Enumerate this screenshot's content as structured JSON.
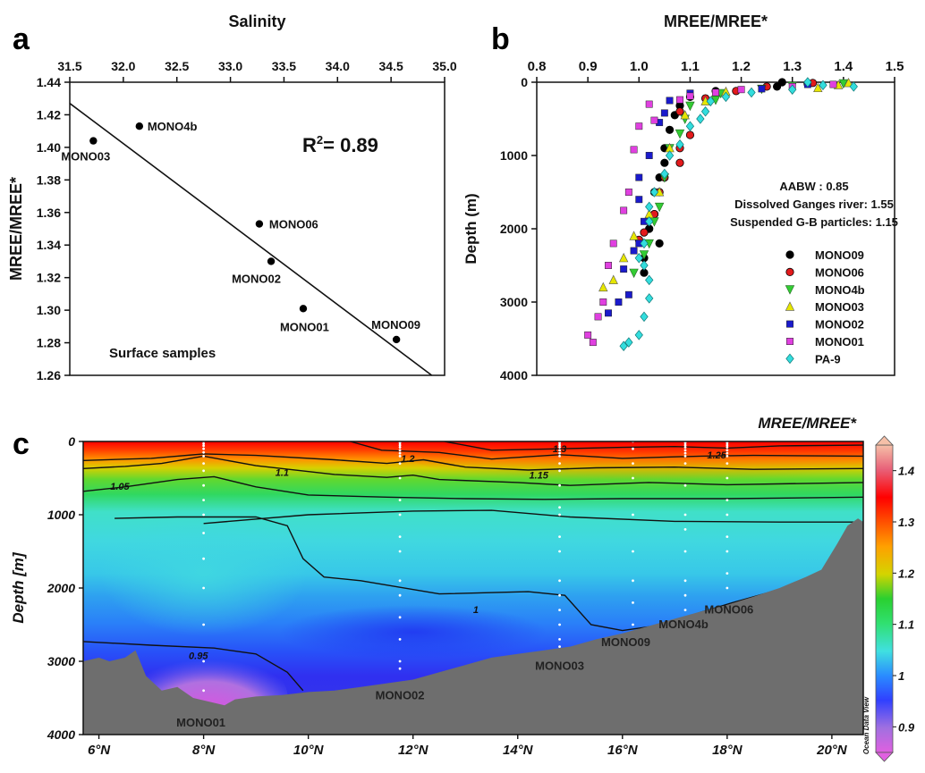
{
  "panels": {
    "a": {
      "letter": "a"
    },
    "b": {
      "letter": "b"
    },
    "c": {
      "letter": "c"
    }
  },
  "chart_data": [
    {
      "id": "a",
      "type": "scatter",
      "title": "Salinity",
      "xlabel": "Salinity",
      "ylabel": "MREE/MREE*",
      "xlim": [
        31.5,
        35.0
      ],
      "ylim": [
        1.26,
        1.44
      ],
      "xticks": [
        "31.5",
        "32.0",
        "32.5",
        "33.0",
        "33.5",
        "34.0",
        "34.5",
        "35.0"
      ],
      "yticks": [
        "1.26",
        "1.28",
        "1.30",
        "1.32",
        "1.34",
        "1.36",
        "1.38",
        "1.40",
        "1.42",
        "1.44"
      ],
      "x_axis_position": "top",
      "grid": false,
      "points": [
        {
          "label": "MONO03",
          "x": 31.72,
          "y": 1.404
        },
        {
          "label": "MONO4b",
          "x": 32.15,
          "y": 1.413
        },
        {
          "label": "MONO06",
          "x": 33.27,
          "y": 1.353
        },
        {
          "label": "MONO02",
          "x": 33.38,
          "y": 1.33
        },
        {
          "label": "MONO01",
          "x": 33.68,
          "y": 1.301
        },
        {
          "label": "MONO09",
          "x": 34.55,
          "y": 1.282
        }
      ],
      "fit_line": {
        "x": [
          31.5,
          34.88
        ],
        "y": [
          1.427,
          1.26
        ]
      },
      "annotations": [
        {
          "text": "R",
          "sup": "2",
          "rest": "= 0.89"
        },
        {
          "text": "Surface samples"
        }
      ]
    },
    {
      "id": "b",
      "type": "scatter",
      "title": "MREE/MREE*",
      "xlabel": "MREE/MREE*",
      "ylabel": "Depth (m)",
      "xlim": [
        0.8,
        1.5
      ],
      "ylim": [
        0,
        4000
      ],
      "y_inverted": true,
      "xticks": [
        "0.8",
        "0.9",
        "1.0",
        "1.1",
        "1.2",
        "1.3",
        "1.4",
        "1.5"
      ],
      "yticks": [
        "0",
        "1000",
        "2000",
        "3000",
        "4000"
      ],
      "x_axis_position": "top",
      "grid": false,
      "annotations": [
        "AABW : 0.85",
        "Dissolved Ganges river: 1.55",
        "Suspended G-B particles: 1.15"
      ],
      "legend_placement": "bottom-right",
      "series": [
        {
          "name": "MONO09",
          "marker": "circle",
          "color": "#000000",
          "points": [
            [
              1.28,
              0
            ],
            [
              1.33,
              20
            ],
            [
              1.27,
              60
            ],
            [
              1.15,
              120
            ],
            [
              1.1,
              200
            ],
            [
              1.08,
              320
            ],
            [
              1.07,
              450
            ],
            [
              1.06,
              650
            ],
            [
              1.05,
              900
            ],
            [
              1.05,
              1100
            ],
            [
              1.04,
              1300
            ],
            [
              1.03,
              1500
            ],
            [
              1.03,
              1800
            ],
            [
              1.02,
              2000
            ],
            [
              1.04,
              2200
            ],
            [
              1.01,
              2400
            ],
            [
              1.01,
              2600
            ]
          ]
        },
        {
          "name": "MONO06",
          "marker": "circle",
          "color": "#e31a1c",
          "points": [
            [
              1.34,
              10
            ],
            [
              1.25,
              60
            ],
            [
              1.19,
              120
            ],
            [
              1.13,
              220
            ],
            [
              1.08,
              400
            ],
            [
              1.1,
              720
            ],
            [
              1.08,
              900
            ],
            [
              1.08,
              1100
            ],
            [
              1.05,
              1300
            ],
            [
              1.04,
              1500
            ],
            [
              1.03,
              1800
            ],
            [
              1.01,
              2050
            ],
            [
              1.0,
              2150
            ]
          ]
        },
        {
          "name": "MONO4b",
          "marker": "triangle-down",
          "color": "#33cc33",
          "points": [
            [
              1.4,
              15
            ],
            [
              1.3,
              50
            ],
            [
              1.24,
              90
            ],
            [
              1.16,
              150
            ],
            [
              1.15,
              240
            ],
            [
              1.1,
              320
            ],
            [
              1.09,
              500
            ],
            [
              1.08,
              700
            ],
            [
              1.06,
              900
            ],
            [
              1.05,
              1300
            ],
            [
              1.04,
              1700
            ],
            [
              1.03,
              1900
            ],
            [
              1.02,
              2200
            ],
            [
              1.01,
              2350
            ],
            [
              0.99,
              2600
            ]
          ]
        },
        {
          "name": "MONO03",
          "marker": "triangle-up",
          "color": "#e6e600",
          "points": [
            [
              1.41,
              10
            ],
            [
              1.39,
              40
            ],
            [
              1.35,
              80
            ],
            [
              1.17,
              130
            ],
            [
              1.13,
              260
            ],
            [
              1.09,
              450
            ],
            [
              1.06,
              900
            ],
            [
              1.04,
              1500
            ],
            [
              1.02,
              1800
            ],
            [
              0.99,
              2100
            ],
            [
              0.97,
              2400
            ],
            [
              0.95,
              2700
            ],
            [
              0.93,
              2800
            ]
          ]
        },
        {
          "name": "MONO02",
          "marker": "square",
          "color": "#1a1acc",
          "points": [
            [
              1.33,
              30
            ],
            [
              1.24,
              90
            ],
            [
              1.1,
              150
            ],
            [
              1.06,
              250
            ],
            [
              1.05,
              420
            ],
            [
              1.04,
              550
            ],
            [
              1.02,
              1000
            ],
            [
              1.0,
              1300
            ],
            [
              1.0,
              1600
            ],
            [
              1.01,
              1900
            ],
            [
              1.0,
              2200
            ],
            [
              0.99,
              2300
            ],
            [
              0.97,
              2550
            ],
            [
              0.98,
              2900
            ],
            [
              0.96,
              3000
            ],
            [
              0.94,
              3150
            ]
          ]
        },
        {
          "name": "MONO01",
          "marker": "square",
          "color": "#e040e0",
          "points": [
            [
              1.38,
              30
            ],
            [
              1.3,
              60
            ],
            [
              1.2,
              100
            ],
            [
              1.15,
              140
            ],
            [
              1.1,
              190
            ],
            [
              1.08,
              240
            ],
            [
              1.02,
              300
            ],
            [
              1.03,
              520
            ],
            [
              1.0,
              600
            ],
            [
              0.99,
              920
            ],
            [
              0.98,
              1500
            ],
            [
              0.97,
              1750
            ],
            [
              0.95,
              2200
            ],
            [
              0.94,
              2500
            ],
            [
              0.93,
              3000
            ],
            [
              0.92,
              3200
            ],
            [
              0.9,
              3450
            ],
            [
              0.91,
              3550
            ]
          ]
        },
        {
          "name": "PA-9",
          "marker": "diamond",
          "color": "#33dddd",
          "points": [
            [
              1.33,
              0
            ],
            [
              1.36,
              40
            ],
            [
              1.42,
              60
            ],
            [
              1.3,
              100
            ],
            [
              1.22,
              140
            ],
            [
              1.17,
              200
            ],
            [
              1.14,
              260
            ],
            [
              1.13,
              400
            ],
            [
              1.12,
              500
            ],
            [
              1.1,
              600
            ],
            [
              1.08,
              850
            ],
            [
              1.06,
              1000
            ],
            [
              1.05,
              1250
            ],
            [
              1.03,
              1500
            ],
            [
              1.02,
              1700
            ],
            [
              1.02,
              1900
            ],
            [
              1.01,
              2200
            ],
            [
              1.0,
              2400
            ],
            [
              1.01,
              2500
            ],
            [
              1.02,
              2700
            ],
            [
              1.02,
              2950
            ],
            [
              1.01,
              3200
            ],
            [
              1.0,
              3450
            ],
            [
              0.98,
              3550
            ],
            [
              0.97,
              3600
            ]
          ]
        }
      ]
    },
    {
      "id": "c",
      "type": "heatmap",
      "title": "MREE/MREE*",
      "ylabel": "Depth [m]",
      "xlim": [
        5.7,
        20.6
      ],
      "ylim": [
        0,
        4000
      ],
      "y_inverted": true,
      "xticks": [
        "6°N",
        "8°N",
        "10°N",
        "12°N",
        "14°N",
        "16°N",
        "18°N",
        "20°N"
      ],
      "xtick_values": [
        6,
        8,
        10,
        12,
        14,
        16,
        18,
        20
      ],
      "yticks": [
        "0",
        "1000",
        "2000",
        "3000",
        "4000"
      ],
      "colorbar": {
        "min": 0.85,
        "max": 1.45,
        "ticks": [
          "0.9",
          "1",
          "1.1",
          "1.2",
          "1.3",
          "1.4"
        ],
        "tick_values": [
          0.9,
          1.0,
          1.1,
          1.2,
          1.3,
          1.4
        ]
      },
      "watermark": "Ocean Data View",
      "contour_labels": [
        {
          "text": "1.3",
          "x": 14.8,
          "y": 100
        },
        {
          "text": "1.25",
          "x": 17.8,
          "y": 180
        },
        {
          "text": "1.2",
          "x": 11.9,
          "y": 230
        },
        {
          "text": "1.15",
          "x": 14.4,
          "y": 460
        },
        {
          "text": "1.1",
          "x": 9.5,
          "y": 420
        },
        {
          "text": "1.05",
          "x": 6.4,
          "y": 610
        },
        {
          "text": "1",
          "x": 13.2,
          "y": 2290
        },
        {
          "text": "0.95",
          "x": 7.9,
          "y": 2920
        }
      ],
      "stations": [
        {
          "label": "MONO01",
          "x": 8.0,
          "y": 3550
        },
        {
          "label": "MONO02",
          "x": 11.75,
          "y": 3250
        },
        {
          "label": "MONO03",
          "x": 14.8,
          "y": 2850
        },
        {
          "label": "MONO09",
          "x": 16.2,
          "y": 2600
        },
        {
          "label": "MONO4b",
          "x": 17.2,
          "y": 2380
        },
        {
          "label": "MONO06",
          "x": 18.0,
          "y": 2200
        }
      ],
      "station_x": [
        8.0,
        11.75,
        14.8,
        16.2,
        17.2,
        18.0
      ],
      "station_depths": [
        [
          0,
          30,
          60,
          100,
          150,
          200,
          300,
          400,
          600,
          800,
          1000,
          1250,
          1600,
          2000,
          2500,
          3000,
          3400
        ],
        [
          0,
          20,
          50,
          80,
          120,
          160,
          200,
          300,
          500,
          800,
          1000,
          1300,
          1500,
          1900,
          2100,
          2400,
          2700,
          3000,
          3100
        ],
        [
          0,
          20,
          50,
          80,
          120,
          160,
          200,
          300,
          400,
          600,
          900,
          1000,
          1300,
          1500,
          1900,
          2100,
          2300,
          2500,
          2700,
          2800
        ],
        [
          0,
          100,
          300,
          500,
          1000,
          1500,
          1900,
          2200,
          2500
        ],
        [
          0,
          20,
          50,
          80,
          120,
          160,
          200,
          300,
          600,
          1000,
          1200,
          1500,
          1900,
          2100,
          2300
        ],
        [
          0,
          20,
          50,
          80,
          120,
          160,
          200,
          300,
          500,
          800,
          1000,
          1300,
          1500,
          1800,
          2000
        ]
      ],
      "bathymetry": [
        [
          5.7,
          3000
        ],
        [
          6.0,
          2950
        ],
        [
          6.2,
          3000
        ],
        [
          6.5,
          2950
        ],
        [
          6.7,
          2850
        ],
        [
          6.9,
          3200
        ],
        [
          7.2,
          3400
        ],
        [
          7.5,
          3350
        ],
        [
          7.8,
          3500
        ],
        [
          8.1,
          3550
        ],
        [
          8.4,
          3600
        ],
        [
          8.6,
          3520
        ],
        [
          9.0,
          3480
        ],
        [
          9.5,
          3460
        ],
        [
          10.0,
          3420
        ],
        [
          10.5,
          3400
        ],
        [
          11.0,
          3350
        ],
        [
          11.5,
          3300
        ],
        [
          12.0,
          3250
        ],
        [
          12.5,
          3150
        ],
        [
          13.0,
          3050
        ],
        [
          13.5,
          2950
        ],
        [
          14.0,
          2900
        ],
        [
          14.5,
          2850
        ],
        [
          15.0,
          2800
        ],
        [
          15.5,
          2700
        ],
        [
          16.0,
          2620
        ],
        [
          16.5,
          2520
        ],
        [
          17.0,
          2420
        ],
        [
          17.5,
          2320
        ],
        [
          18.0,
          2230
        ],
        [
          18.5,
          2120
        ],
        [
          19.0,
          2000
        ],
        [
          19.5,
          1850
        ],
        [
          19.8,
          1750
        ],
        [
          20.1,
          1400
        ],
        [
          20.3,
          1150
        ],
        [
          20.5,
          1050
        ],
        [
          20.6,
          1100
        ]
      ]
    }
  ]
}
